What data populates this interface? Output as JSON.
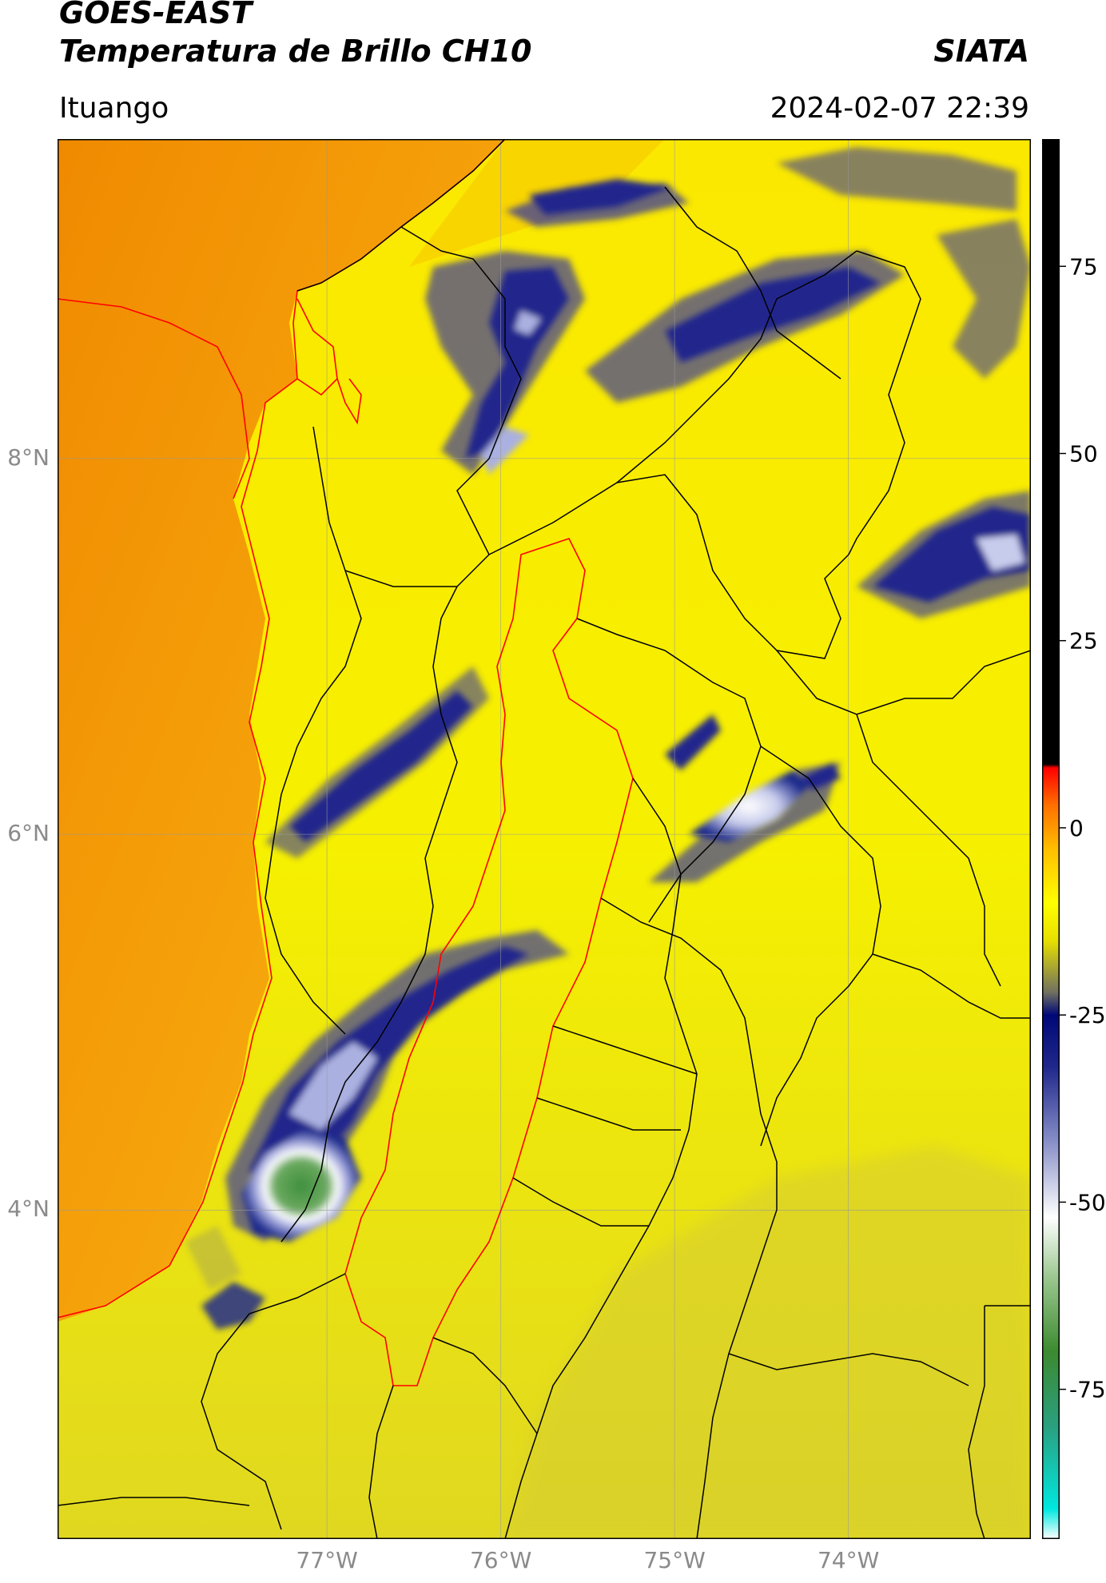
{
  "header": {
    "satellite": "GOES-EAST",
    "product": "Temperatura de Brillo CH10",
    "organization": "SIATA",
    "region": "Ituango",
    "timestamp": "2024-02-07 22:39"
  },
  "map": {
    "lon_range": [
      -78.55,
      -72.95
    ],
    "lat_range": [
      2.25,
      9.7
    ],
    "lat_ticks": [
      {
        "value": 8,
        "label": "8°N"
      },
      {
        "value": 6,
        "label": "6°N"
      },
      {
        "value": 4,
        "label": "4°N"
      }
    ],
    "lon_ticks": [
      {
        "value": -77,
        "label": "77°W"
      },
      {
        "value": -76,
        "label": "76°W"
      },
      {
        "value": -75,
        "label": "75°W"
      },
      {
        "value": -74,
        "label": "74°W"
      }
    ],
    "gridlines": true,
    "colors": {
      "ocean_warm": "#f3920c",
      "land_warm": "#f7f000",
      "cloud_mid": "#1c2a8c",
      "cloud_cold": "#f2f2ff",
      "cloud_coldest": "#3f8f3f",
      "coastline": "#ff0000",
      "borders": "#000000"
    }
  },
  "colorbar": {
    "range": [
      -95,
      92
    ],
    "ticks": [
      75,
      50,
      25,
      0,
      -25,
      -50,
      -75
    ],
    "stops": [
      {
        "value": -95,
        "color": "#ffffff"
      },
      {
        "value": -91,
        "color": "#00e8e0"
      },
      {
        "value": -80,
        "color": "#2aa080"
      },
      {
        "value": -70,
        "color": "#3c8a30"
      },
      {
        "value": -60,
        "color": "#9cc890"
      },
      {
        "value": -52,
        "color": "#ffffff"
      },
      {
        "value": -42,
        "color": "#8890c8"
      },
      {
        "value": -32,
        "color": "#20288c"
      },
      {
        "value": -25,
        "color": "#000878"
      },
      {
        "value": -22,
        "color": "#707060"
      },
      {
        "value": -15,
        "color": "#e8e000"
      },
      {
        "value": -10,
        "color": "#ffff00"
      },
      {
        "value": -3,
        "color": "#ffc000"
      },
      {
        "value": 3,
        "color": "#ff7000"
      },
      {
        "value": 8,
        "color": "#ff0000"
      },
      {
        "value": 8.5,
        "color": "#000000"
      },
      {
        "value": 92,
        "color": "#000000"
      }
    ]
  }
}
